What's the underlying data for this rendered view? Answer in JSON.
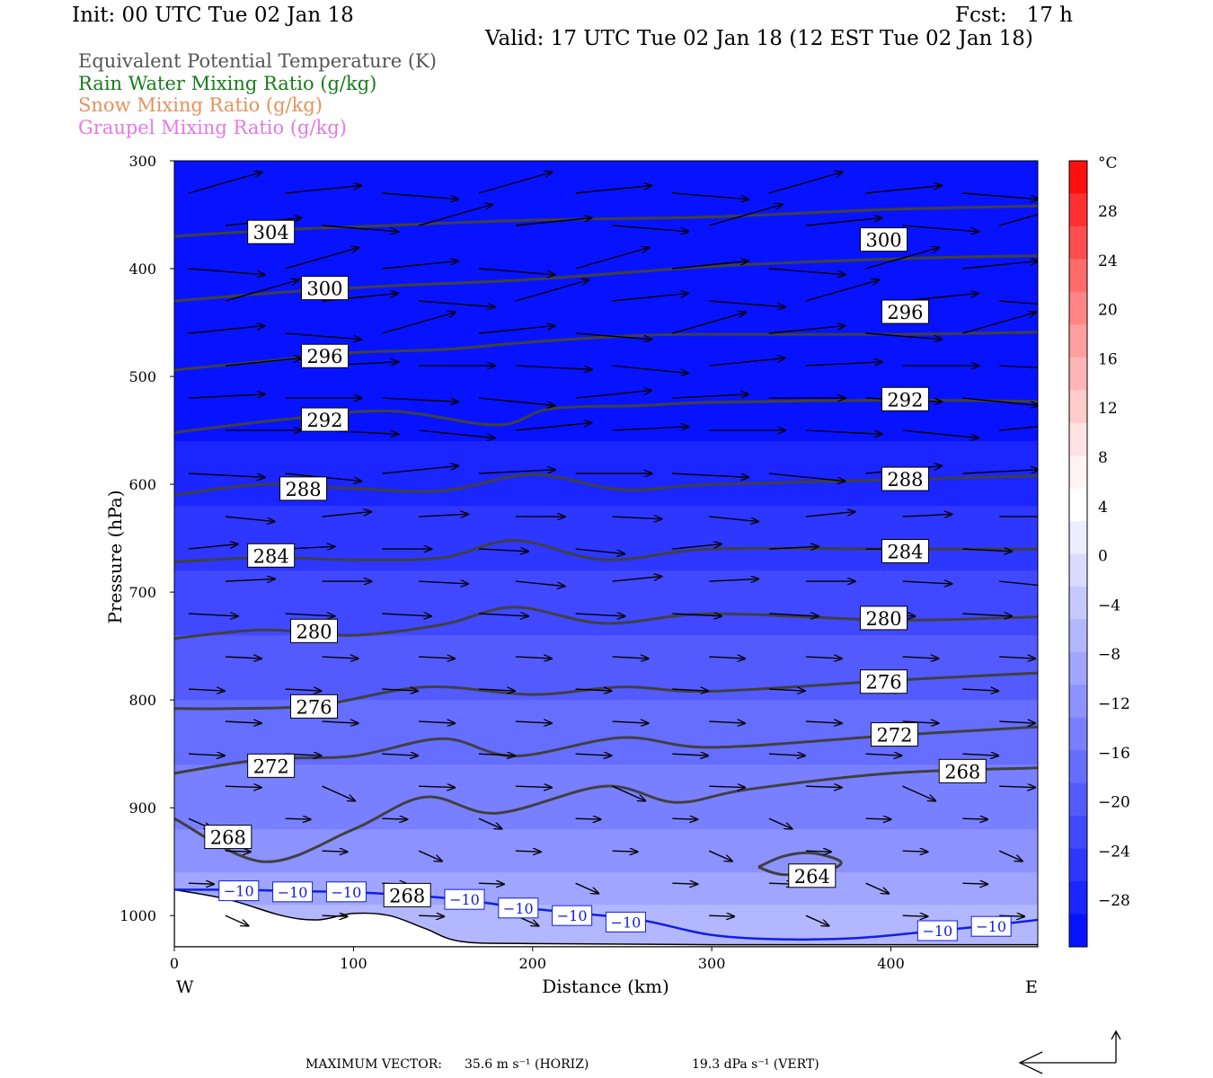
{
  "header": {
    "init": "Init: 00 UTC Tue 02 Jan 18",
    "fcst": "Fcst:   17 h",
    "valid": "Valid: 17 UTC Tue 02 Jan 18 (12 EST Tue 02 Jan 18)"
  },
  "legend": [
    {
      "text": "Equivalent Potential Temperature (K)",
      "color": "#555555"
    },
    {
      "text": "Rain Water Mixing Ratio (g/kg)",
      "color": "#1a7a1a"
    },
    {
      "text": "Snow Mixing Ratio (g/kg)",
      "color": "#e8915a"
    },
    {
      "text": "Graupel Mixing Ratio (g/kg)",
      "color": "#e27ae2"
    }
  ],
  "footer": {
    "max_vector_label": "MAXIMUM VECTOR:",
    "horiz": "35.6 m s⁻¹ (HORIZ)",
    "vert": "19.3 dPa s⁻¹ (VERT)"
  },
  "chart_data": {
    "type": "cross-section",
    "xlabel": "Distance (km)",
    "ylabel": "Pressure (hPa)",
    "x_ticks": [
      0,
      100,
      200,
      300,
      400
    ],
    "x_end_labels": {
      "left": "W",
      "right": "E"
    },
    "xlim": [
      0,
      482
    ],
    "y_ticks": [
      300,
      400,
      500,
      600,
      700,
      800,
      900,
      1000
    ],
    "ylim": [
      300,
      1029
    ],
    "colorbar": {
      "unit": "°C",
      "tick_labels": [
        "28",
        "24",
        "20",
        "16",
        "12",
        "8",
        "4",
        "0",
        "−4",
        "−8",
        "−12",
        "−16",
        "−20",
        "−24",
        "−28"
      ],
      "colors_top_to_bottom": [
        "#ff1010",
        "#ff3030",
        "#ff4e4e",
        "#ff6a6a",
        "#ff8585",
        "#ff9f9f",
        "#ffb5b5",
        "#ffcccc",
        "#ffe2e2",
        "#fff2f2",
        "#ffffff",
        "#ecedff",
        "#d9dbff",
        "#c6c9ff",
        "#b3b7ff",
        "#a0a5ff",
        "#8c92ff",
        "#7980ff",
        "#666eff",
        "#535bff",
        "#4049ff",
        "#2d37ff",
        "#1a25ff",
        "#0713ff"
      ]
    },
    "theta_e_contours": [
      {
        "value": 304,
        "x": [
          0,
          60,
          120,
          200,
          300,
          400,
          482
        ],
        "p": [
          370,
          364,
          360,
          355,
          352,
          345,
          342
        ]
      },
      {
        "value": 300,
        "x": [
          0,
          60,
          120,
          200,
          300,
          400,
          482
        ],
        "p": [
          430,
          422,
          416,
          410,
          398,
          391,
          388
        ]
      },
      {
        "value": 296,
        "x": [
          0,
          50,
          100,
          150,
          200,
          260,
          300,
          400,
          482
        ],
        "p": [
          494,
          486,
          478,
          475,
          468,
          462,
          461,
          461,
          459
        ]
      },
      {
        "value": 292,
        "x": [
          0,
          60,
          120,
          180,
          210,
          260,
          300,
          400,
          482
        ],
        "p": [
          552,
          540,
          532,
          545,
          530,
          527,
          524,
          522,
          523
        ]
      },
      {
        "value": 288,
        "x": [
          0,
          50,
          100,
          150,
          200,
          250,
          300,
          400,
          482
        ],
        "p": [
          610,
          600,
          604,
          606,
          591,
          605,
          600,
          596,
          592
        ]
      },
      {
        "value": 284,
        "x": [
          0,
          50,
          100,
          150,
          190,
          240,
          300,
          400,
          482
        ],
        "p": [
          672,
          668,
          670,
          668,
          652,
          670,
          660,
          660,
          660
        ]
      },
      {
        "value": 280,
        "x": [
          0,
          50,
          100,
          150,
          190,
          240,
          300,
          400,
          482
        ],
        "p": [
          743,
          735,
          740,
          730,
          714,
          729,
          720,
          726,
          723
        ]
      },
      {
        "value": 276,
        "x": [
          0,
          30,
          80,
          140,
          200,
          250,
          300,
          400,
          482
        ],
        "p": [
          808,
          808,
          805,
          788,
          795,
          788,
          792,
          782,
          775
        ]
      },
      {
        "value": 272,
        "x": [
          0,
          50,
          100,
          150,
          190,
          250,
          300,
          400,
          482
        ],
        "p": [
          868,
          855,
          852,
          836,
          852,
          835,
          844,
          833,
          825
        ]
      },
      {
        "value": 268,
        "x": [
          0,
          50,
          100,
          140,
          180,
          240,
          280,
          320,
          400,
          482
        ],
        "p": [
          910,
          950,
          920,
          890,
          905,
          880,
          895,
          883,
          868,
          863
        ]
      },
      {
        "value": 264,
        "x": [
          326,
          340,
          356,
          372,
          364,
          340,
          326
        ],
        "p": [
          955,
          945,
          942,
          950,
          958,
          962,
          955
        ]
      }
    ],
    "contour_labels": [
      {
        "value": "304",
        "x": 54,
        "p": 366
      },
      {
        "value": "300",
        "x": 84,
        "p": 418
      },
      {
        "value": "296",
        "x": 84,
        "p": 481
      },
      {
        "value": "292",
        "x": 84,
        "p": 540
      },
      {
        "value": "288",
        "x": 72,
        "p": 604
      },
      {
        "value": "284",
        "x": 54,
        "p": 666
      },
      {
        "value": "280",
        "x": 78,
        "p": 736
      },
      {
        "value": "276",
        "x": 78,
        "p": 806
      },
      {
        "value": "272",
        "x": 54,
        "p": 861
      },
      {
        "value": "268",
        "x": 30,
        "p": 927
      },
      {
        "value": "268",
        "x": 130,
        "p": 981
      },
      {
        "value": "300",
        "x": 396,
        "p": 373
      },
      {
        "value": "296",
        "x": 408,
        "p": 440
      },
      {
        "value": "292",
        "x": 408,
        "p": 521
      },
      {
        "value": "288",
        "x": 408,
        "p": 595
      },
      {
        "value": "284",
        "x": 408,
        "p": 662
      },
      {
        "value": "280",
        "x": 396,
        "p": 724
      },
      {
        "value": "276",
        "x": 396,
        "p": 783
      },
      {
        "value": "272",
        "x": 402,
        "p": 832
      },
      {
        "value": "268",
        "x": 440,
        "p": 866
      },
      {
        "value": "264",
        "x": 356,
        "p": 963
      }
    ],
    "minus10_isotherm": {
      "value": "−10",
      "x": [
        0,
        30,
        60,
        90,
        120,
        160,
        190,
        220,
        260,
        300,
        340,
        380,
        420,
        450,
        482
      ],
      "p": [
        976,
        976,
        977,
        978,
        980,
        985,
        992,
        997,
        1004,
        1018,
        1022,
        1021,
        1015,
        1010,
        1004
      ],
      "label_positions": [
        {
          "x": 36,
          "p": 977
        },
        {
          "x": 66,
          "p": 978
        },
        {
          "x": 96,
          "p": 978
        },
        {
          "x": 162,
          "p": 985
        },
        {
          "x": 192,
          "p": 993
        },
        {
          "x": 222,
          "p": 1000
        },
        {
          "x": 252,
          "p": 1006
        },
        {
          "x": 426,
          "p": 1014
        },
        {
          "x": 456,
          "p": 1010
        }
      ]
    },
    "temperature_fill_bands": [
      {
        "p_top": 300,
        "p_bot": 560,
        "color": "#0713ff"
      },
      {
        "p_top": 560,
        "p_bot": 620,
        "color": "#1a25ff"
      },
      {
        "p_top": 620,
        "p_bot": 680,
        "color": "#2d37ff"
      },
      {
        "p_top": 680,
        "p_bot": 740,
        "color": "#4049ff"
      },
      {
        "p_top": 740,
        "p_bot": 800,
        "color": "#535bff"
      },
      {
        "p_top": 800,
        "p_bot": 860,
        "color": "#666eff"
      },
      {
        "p_top": 860,
        "p_bot": 920,
        "color": "#7980ff"
      },
      {
        "p_top": 920,
        "p_bot": 960,
        "color": "#8c92ff"
      },
      {
        "p_top": 960,
        "p_bot": 990,
        "color": "#a0a5ff"
      },
      {
        "p_top": 990,
        "p_bot": 1029,
        "color": "#b3b7ff"
      }
    ],
    "terrain": {
      "x": [
        0,
        30,
        60,
        80,
        100,
        120,
        140,
        160,
        200,
        300,
        482
      ],
      "p": [
        976,
        985,
        1000,
        1004,
        998,
        1000,
        1012,
        1024,
        1026,
        1027,
        1027
      ]
    },
    "wind_vectors_note": "horizontal-vertical circulation vectors"
  }
}
